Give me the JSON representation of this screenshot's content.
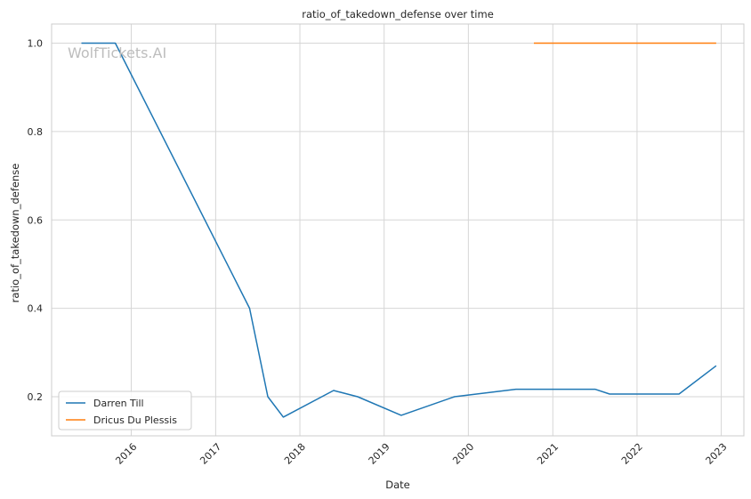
{
  "watermark": "WolfTickets.AI",
  "chart_data": {
    "type": "line",
    "title": "ratio_of_takedown_defense over time",
    "xlabel": "Date",
    "ylabel": "ratio_of_takedown_defense",
    "x_type": "date",
    "xlim": [
      "2015-01-21",
      "2023-04-09"
    ],
    "ylim": [
      0.11,
      1.0
    ],
    "x_ticks": [
      "2016-01-01",
      "2017-01-01",
      "2018-01-01",
      "2019-01-01",
      "2020-01-01",
      "2021-01-01",
      "2022-01-01",
      "2023-01-01"
    ],
    "x_tick_labels": [
      "2016",
      "2017",
      "2018",
      "2019",
      "2020",
      "2021",
      "2022",
      "2023"
    ],
    "y_ticks": [
      0.2,
      0.4,
      0.6,
      0.8,
      1.0
    ],
    "y_tick_labels": [
      "0.2",
      "0.4",
      "0.6",
      "0.8",
      "1.0"
    ],
    "grid": true,
    "legend_position": "lower-left",
    "series": [
      {
        "name": "Darren Till",
        "color": "#1f77b4",
        "points": [
          {
            "x": "2015-05-30",
            "y": 1.0
          },
          {
            "x": "2015-10-24",
            "y": 1.0
          },
          {
            "x": "2017-05-28",
            "y": 0.4
          },
          {
            "x": "2017-08-15",
            "y": 0.2
          },
          {
            "x": "2017-10-21",
            "y": 0.154
          },
          {
            "x": "2018-05-27",
            "y": 0.214
          },
          {
            "x": "2018-09-08",
            "y": 0.2
          },
          {
            "x": "2019-03-16",
            "y": 0.158
          },
          {
            "x": "2019-11-02",
            "y": 0.2
          },
          {
            "x": "2020-07-25",
            "y": 0.217
          },
          {
            "x": "2021-07-03",
            "y": 0.217
          },
          {
            "x": "2021-09-04",
            "y": 0.206
          },
          {
            "x": "2022-07-02",
            "y": 0.206
          },
          {
            "x": "2022-12-10",
            "y": 0.27
          }
        ]
      },
      {
        "name": "Dricus Du Plessis",
        "color": "#ff7f0e",
        "points": [
          {
            "x": "2020-10-11",
            "y": 1.0
          },
          {
            "x": "2022-12-10",
            "y": 1.0
          }
        ]
      }
    ]
  }
}
